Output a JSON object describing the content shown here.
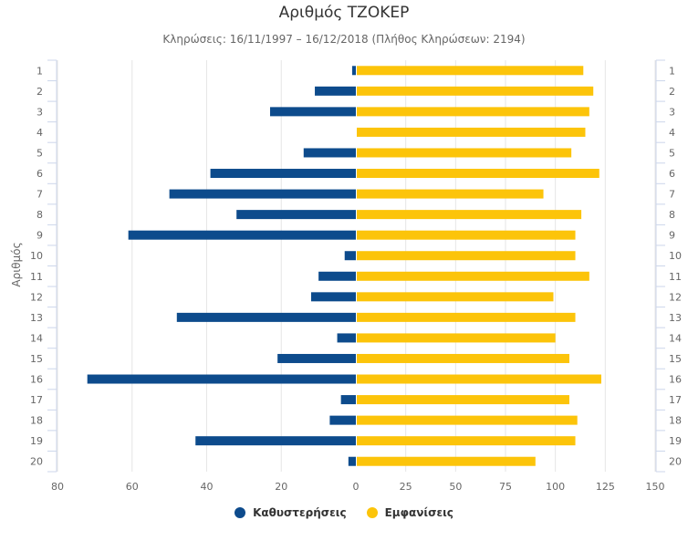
{
  "chart_data": {
    "type": "bar",
    "orientation": "horizontal-diverging",
    "title": "Αριθμός ΤΖΟΚΕΡ",
    "subtitle": "Κληρώσεις: 16/11/1997 – 16/12/2018 (Πλήθος Κληρώσεων: 2194)",
    "ylabel": "Αριθμός",
    "categories": [
      "1",
      "2",
      "3",
      "4",
      "5",
      "6",
      "7",
      "8",
      "9",
      "10",
      "11",
      "12",
      "13",
      "14",
      "15",
      "16",
      "17",
      "18",
      "19",
      "20"
    ],
    "left_axis": {
      "range": [
        0,
        80
      ],
      "ticks": [
        "80",
        "60",
        "40",
        "20",
        "0"
      ]
    },
    "right_axis": {
      "range": [
        0,
        150
      ],
      "ticks": [
        "25",
        "50",
        "75",
        "100",
        "125",
        "150"
      ]
    },
    "grid": true,
    "legend_position": "bottom",
    "series": [
      {
        "name": "Καθυστερήσεις",
        "color": "#0d4b8c",
        "side": "left",
        "values": [
          1,
          11,
          23,
          0,
          14,
          39,
          50,
          32,
          61,
          3,
          10,
          12,
          48,
          5,
          21,
          72,
          4,
          7,
          43,
          2
        ]
      },
      {
        "name": "Εμφανίσεις",
        "color": "#fcc40a",
        "side": "right",
        "values": [
          114,
          119,
          117,
          115,
          108,
          122,
          94,
          113,
          110,
          110,
          117,
          99,
          110,
          100,
          107,
          123,
          107,
          111,
          110,
          90
        ]
      }
    ]
  }
}
